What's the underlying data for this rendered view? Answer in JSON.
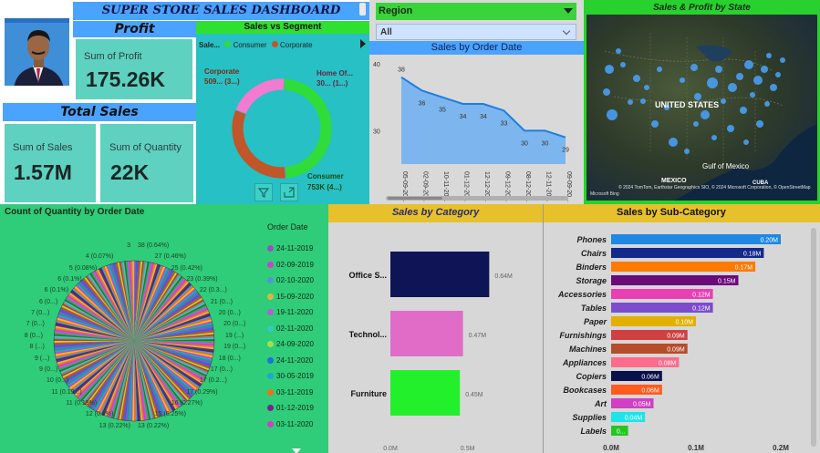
{
  "header": {
    "title": "SUPER STORE SALES DASHBOARD"
  },
  "profit": {
    "banner": "Profit",
    "label": "Sum of Profit",
    "value": "175.26K"
  },
  "total_sales": {
    "banner": "Total Sales",
    "cards": [
      {
        "label": "Sum of Sales",
        "value": "1.57M"
      },
      {
        "label": "Sum of Quantity",
        "value": "22K"
      }
    ]
  },
  "segment": {
    "title": "Sales vs Segment",
    "legend_prefix": "Sale...",
    "legend": [
      {
        "name": "Consumer",
        "color": "#2fdc3a"
      },
      {
        "name": "Corporate",
        "color": "#c0562a"
      }
    ],
    "labels": [
      {
        "line1": "Corporate",
        "line2": "509... (3...)"
      },
      {
        "line1": "Home Of...",
        "line2": "30... (1...)"
      },
      {
        "line1": "Consumer",
        "line2": "753K (4...)"
      }
    ],
    "slices": [
      {
        "name": "Consumer",
        "value": 753,
        "color": "#2fdc3a"
      },
      {
        "name": "Corporate",
        "value": 509,
        "color": "#c0562a"
      },
      {
        "name": "Home Office",
        "value": 309,
        "color": "#f07bd0"
      }
    ]
  },
  "region": {
    "label": "Region",
    "selected": "All"
  },
  "order_date_chart": {
    "title": "Sales by Order Date",
    "chart_data": {
      "type": "area",
      "x": [
        "05-09-20...",
        "02-09-20...",
        "10-11-20...",
        "01-12-20...",
        "12-12-20...",
        "09-12-20...",
        "08-12-20...",
        "12-11-20...",
        "09-09-20..."
      ],
      "values": [
        38,
        36,
        35,
        34,
        34,
        33,
        30,
        30,
        29
      ],
      "value_labels": [
        "38",
        "36",
        "35",
        "34",
        "34",
        "33",
        "30",
        "30",
        "29"
      ],
      "y_ticks": [
        "40",
        "30"
      ],
      "ylim": [
        25,
        40
      ]
    }
  },
  "map": {
    "title": "Sales & Profit by State",
    "labels": [
      "UNITED STATES",
      "MEXICO",
      "Gulf of Mexico",
      "CUBA"
    ],
    "attribution": "© 2024 TomTom, Earthstar Geographics SIO, © 2024 Microsoft Corporation, © OpenStreetMap",
    "bing": "Microsoft Bing"
  },
  "quantity_pie": {
    "title": "Count of Quantity by Order Date",
    "legend_title": "Order Date",
    "legend": [
      {
        "date": "24-11-2019",
        "color": "#9a4ec7"
      },
      {
        "date": "02-09-2019",
        "color": "#d03fd0"
      },
      {
        "date": "02-10-2020",
        "color": "#5a8fe0"
      },
      {
        "date": "15-09-2020",
        "color": "#e0b43b"
      },
      {
        "date": "19-11-2020",
        "color": "#bd5ad8"
      },
      {
        "date": "02-11-2020",
        "color": "#38c7c7"
      },
      {
        "date": "24-09-2020",
        "color": "#a7e043"
      },
      {
        "date": "24-11-2020",
        "color": "#1f6fde"
      },
      {
        "date": "30-05-2019",
        "color": "#22a4d8"
      },
      {
        "date": "03-11-2019",
        "color": "#ff6a13"
      },
      {
        "date": "01-12-2019",
        "color": "#7a2093"
      },
      {
        "date": "03-11-2020",
        "color": "#d83bc6"
      }
    ],
    "labels": [
      "3",
      "38 (0.64%)",
      "4 (0.07%)",
      "27 (0.46%)",
      "5 (0.08%)",
      "25 (0.42%)",
      "6 (0.1%)",
      "23 (0.39%)",
      "6 (0.1%)",
      "22 (0.3...)",
      "6 (0...)",
      "21 (0...)",
      "7 (0...)",
      "20 (0...)",
      "7 (0...)",
      "20 (0...)",
      "8 (0...)",
      "19 (...)",
      "8 (...)",
      "19 (0...)",
      "9 (...)",
      "18 (0...)",
      "9 (0...)",
      "17 (0...)",
      "10 (0...)",
      "17 (0.2...)",
      "11 (0.19...)",
      "17 (0.29%)",
      "11 (0.19%)",
      "16 (0.27%)",
      "12 (0.2%)",
      "15 (0.25%)",
      "13 (0.22%)",
      "13 (0.22%)"
    ]
  },
  "category": {
    "title": "Sales by Category",
    "chart_data": {
      "type": "bar",
      "categories": [
        "Office S...",
        "Technol...",
        "Furniture"
      ],
      "values": [
        0.64,
        0.47,
        0.45
      ],
      "value_labels": [
        "0.64M",
        "0.47M",
        "0.45M"
      ],
      "colors": [
        "#0f1457",
        "#e06cc8",
        "#22f02a"
      ],
      "x_ticks": [
        "0.0M",
        "0.5M"
      ],
      "xlim": [
        0,
        0.75
      ]
    }
  },
  "subcategory": {
    "title": "Sales by Sub-Category",
    "chart_data": {
      "type": "bar",
      "categories": [
        "Phones",
        "Chairs",
        "Binders",
        "Storage",
        "Accessories",
        "Tables",
        "Paper",
        "Furnishings",
        "Machines",
        "Appliances",
        "Copiers",
        "Bookcases",
        "Art",
        "Supplies",
        "Labels"
      ],
      "values": [
        0.2,
        0.18,
        0.17,
        0.15,
        0.12,
        0.12,
        0.1,
        0.09,
        0.09,
        0.08,
        0.06,
        0.06,
        0.05,
        0.04,
        0.02
      ],
      "value_labels": [
        "0.20M",
        "0.18M",
        "0.17M",
        "0.15M",
        "0.12M",
        "0.12M",
        "0.10M",
        "0.09M",
        "0.09M",
        "0.08M",
        "0.06M",
        "0.06M",
        "0.05M",
        "0.04M",
        "0..."
      ],
      "colors": [
        "#1e88e5",
        "#132a8a",
        "#ff7a00",
        "#6b0a7a",
        "#ea3fb3",
        "#7d4ccd",
        "#e3b000",
        "#d04040",
        "#b34d2a",
        "#ff6b8b",
        "#08114a",
        "#ff5a1f",
        "#d13fc4",
        "#1be5e8",
        "#22c81f"
      ],
      "x_ticks": [
        "0.0M",
        "0.1M",
        "0.2M"
      ],
      "xlim": [
        0,
        0.2
      ]
    }
  }
}
